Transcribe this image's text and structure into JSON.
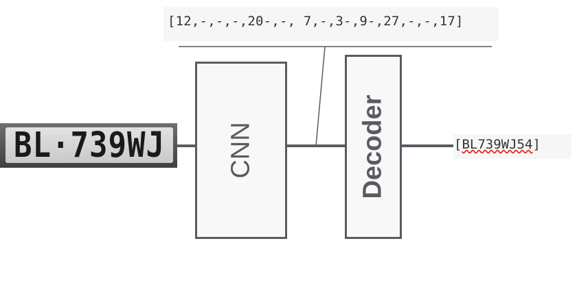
{
  "sequence": "[12,-,-,-,20-,-, 7,-,3-,9-,27,-,-,17]",
  "plate_text": "BL·739WJ",
  "cnn_label": "CNN",
  "decoder_label": "Decoder",
  "output": {
    "open": "[",
    "text": "BL739WJ54",
    "close": "]"
  },
  "colors": {
    "stroke": "#595b62",
    "box_fill": "#f8f8f8",
    "spell_error": "#e03030"
  }
}
